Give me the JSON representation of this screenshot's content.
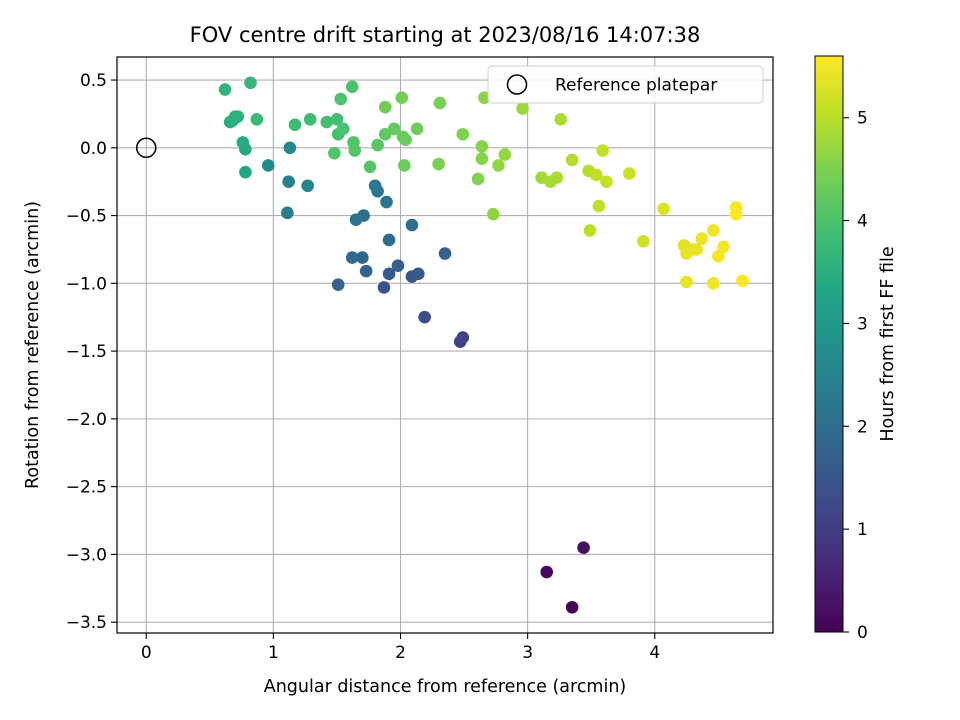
{
  "chart_data": {
    "type": "scatter",
    "title": "FOV centre drift starting at 2023/08/16 14:07:38",
    "xlabel": "Angular distance from reference (arcmin)",
    "ylabel": "Rotation from reference (arcmin)",
    "xlim": [
      -0.23,
      4.93
    ],
    "ylim": [
      -3.58,
      0.67
    ],
    "x_ticks": [
      0,
      1,
      2,
      3,
      4
    ],
    "y_ticks": [
      0.5,
      0.0,
      -0.5,
      -1.0,
      -1.5,
      -2.0,
      -2.5,
      -3.0,
      -3.5
    ],
    "x_tick_labels": [
      "0",
      "1",
      "2",
      "3",
      "4"
    ],
    "y_tick_labels": [
      "0.5",
      "0.0",
      "−0.5",
      "−1.0",
      "−1.5",
      "−2.0",
      "−2.5",
      "−3.0",
      "−3.5"
    ],
    "grid": true,
    "legend": {
      "placement": "top-right",
      "entries": [
        "Reference platepar"
      ]
    },
    "reference_point": {
      "x": 0,
      "y": 0,
      "marker": "open-circle",
      "label": "Reference platepar"
    },
    "colorbar": {
      "label": "Hours from first FF file",
      "range": [
        0,
        5.6
      ],
      "ticks": [
        0,
        1,
        2,
        3,
        4,
        5
      ],
      "tick_labels": [
        "0",
        "1",
        "2",
        "3",
        "4",
        "5"
      ],
      "colormap": "viridis"
    },
    "points": [
      {
        "x": 3.35,
        "y": -3.39,
        "hours": 0.05
      },
      {
        "x": 3.15,
        "y": -3.13,
        "hours": 0.15
      },
      {
        "x": 3.44,
        "y": -2.95,
        "hours": 0.25
      },
      {
        "x": 2.47,
        "y": -1.43,
        "hours": 1.05
      },
      {
        "x": 2.49,
        "y": -1.4,
        "hours": 1.12
      },
      {
        "x": 2.19,
        "y": -1.25,
        "hours": 1.3
      },
      {
        "x": 1.87,
        "y": -1.03,
        "hours": 1.45
      },
      {
        "x": 2.09,
        "y": -0.95,
        "hours": 1.5
      },
      {
        "x": 2.14,
        "y": -0.93,
        "hours": 1.55
      },
      {
        "x": 1.91,
        "y": -0.93,
        "hours": 1.6
      },
      {
        "x": 1.98,
        "y": -0.87,
        "hours": 1.65
      },
      {
        "x": 2.35,
        "y": -0.78,
        "hours": 1.7
      },
      {
        "x": 1.51,
        "y": -1.01,
        "hours": 1.75
      },
      {
        "x": 1.73,
        "y": -0.91,
        "hours": 1.8
      },
      {
        "x": 1.7,
        "y": -0.81,
        "hours": 1.85
      },
      {
        "x": 1.62,
        "y": -0.81,
        "hours": 1.9
      },
      {
        "x": 1.91,
        "y": -0.68,
        "hours": 1.95
      },
      {
        "x": 2.09,
        "y": -0.57,
        "hours": 2.0
      },
      {
        "x": 1.71,
        "y": -0.5,
        "hours": 2.05
      },
      {
        "x": 1.65,
        "y": -0.53,
        "hours": 2.1
      },
      {
        "x": 1.89,
        "y": -0.4,
        "hours": 2.15
      },
      {
        "x": 1.82,
        "y": -0.32,
        "hours": 2.2
      },
      {
        "x": 1.8,
        "y": -0.28,
        "hours": 2.25
      },
      {
        "x": 1.11,
        "y": -0.48,
        "hours": 2.35
      },
      {
        "x": 1.12,
        "y": -0.25,
        "hours": 2.45
      },
      {
        "x": 1.27,
        "y": -0.28,
        "hours": 2.5
      },
      {
        "x": 1.13,
        "y": 0.0,
        "hours": 2.6
      },
      {
        "x": 0.96,
        "y": -0.13,
        "hours": 2.7
      },
      {
        "x": 0.78,
        "y": -0.18,
        "hours": 3.3
      },
      {
        "x": 0.78,
        "y": -0.01,
        "hours": 3.4
      },
      {
        "x": 0.76,
        "y": 0.04,
        "hours": 3.45
      },
      {
        "x": 0.66,
        "y": 0.19,
        "hours": 3.5
      },
      {
        "x": 0.68,
        "y": 0.2,
        "hours": 3.52
      },
      {
        "x": 0.7,
        "y": 0.23,
        "hours": 3.55
      },
      {
        "x": 0.72,
        "y": 0.23,
        "hours": 3.57
      },
      {
        "x": 0.62,
        "y": 0.43,
        "hours": 3.65
      },
      {
        "x": 0.82,
        "y": 0.48,
        "hours": 3.7
      },
      {
        "x": 0.87,
        "y": 0.21,
        "hours": 3.75
      },
      {
        "x": 1.17,
        "y": 0.17,
        "hours": 3.8
      },
      {
        "x": 1.29,
        "y": 0.21,
        "hours": 3.85
      },
      {
        "x": 1.42,
        "y": 0.19,
        "hours": 3.9
      },
      {
        "x": 1.5,
        "y": 0.21,
        "hours": 3.92
      },
      {
        "x": 1.51,
        "y": 0.1,
        "hours": 3.95
      },
      {
        "x": 1.55,
        "y": 0.14,
        "hours": 3.97
      },
      {
        "x": 1.53,
        "y": 0.36,
        "hours": 4.0
      },
      {
        "x": 1.62,
        "y": 0.45,
        "hours": 4.02
      },
      {
        "x": 1.63,
        "y": 0.04,
        "hours": 4.05
      },
      {
        "x": 1.48,
        "y": -0.04,
        "hours": 4.07
      },
      {
        "x": 1.64,
        "y": -0.02,
        "hours": 4.1
      },
      {
        "x": 1.76,
        "y": -0.14,
        "hours": 4.12
      },
      {
        "x": 1.82,
        "y": 0.02,
        "hours": 4.15
      },
      {
        "x": 1.88,
        "y": 0.1,
        "hours": 4.2
      },
      {
        "x": 1.95,
        "y": 0.14,
        "hours": 4.25
      },
      {
        "x": 2.02,
        "y": 0.08,
        "hours": 4.28
      },
      {
        "x": 2.04,
        "y": 0.06,
        "hours": 4.3
      },
      {
        "x": 2.03,
        "y": -0.13,
        "hours": 4.32
      },
      {
        "x": 2.13,
        "y": 0.14,
        "hours": 4.35
      },
      {
        "x": 1.88,
        "y": 0.3,
        "hours": 4.38
      },
      {
        "x": 2.01,
        "y": 0.37,
        "hours": 4.4
      },
      {
        "x": 2.31,
        "y": 0.33,
        "hours": 4.45
      },
      {
        "x": 2.3,
        "y": -0.12,
        "hours": 4.48
      },
      {
        "x": 2.49,
        "y": 0.1,
        "hours": 4.5
      },
      {
        "x": 2.61,
        "y": -0.23,
        "hours": 4.55
      },
      {
        "x": 2.64,
        "y": -0.08,
        "hours": 4.58
      },
      {
        "x": 2.64,
        "y": 0.01,
        "hours": 4.6
      },
      {
        "x": 2.66,
        "y": 0.37,
        "hours": 4.62
      },
      {
        "x": 2.73,
        "y": -0.49,
        "hours": 4.65
      },
      {
        "x": 2.77,
        "y": -0.13,
        "hours": 4.68
      },
      {
        "x": 2.82,
        "y": -0.05,
        "hours": 4.7
      },
      {
        "x": 2.96,
        "y": 0.29,
        "hours": 4.75
      },
      {
        "x": 3.11,
        "y": -0.22,
        "hours": 4.8
      },
      {
        "x": 3.18,
        "y": -0.25,
        "hours": 4.85
      },
      {
        "x": 3.23,
        "y": -0.22,
        "hours": 4.88
      },
      {
        "x": 3.26,
        "y": 0.21,
        "hours": 4.9
      },
      {
        "x": 3.35,
        "y": -0.09,
        "hours": 4.95
      },
      {
        "x": 3.48,
        "y": -0.17,
        "hours": 5.0
      },
      {
        "x": 3.49,
        "y": -0.61,
        "hours": 5.02
      },
      {
        "x": 3.54,
        "y": -0.2,
        "hours": 5.05
      },
      {
        "x": 3.56,
        "y": -0.43,
        "hours": 5.07
      },
      {
        "x": 3.59,
        "y": -0.02,
        "hours": 5.1
      },
      {
        "x": 3.62,
        "y": -0.25,
        "hours": 5.12
      },
      {
        "x": 3.8,
        "y": -0.19,
        "hours": 5.15
      },
      {
        "x": 3.91,
        "y": -0.69,
        "hours": 5.2
      },
      {
        "x": 4.07,
        "y": -0.45,
        "hours": 5.3
      },
      {
        "x": 4.23,
        "y": -0.72,
        "hours": 5.35
      },
      {
        "x": 4.25,
        "y": -0.78,
        "hours": 5.38
      },
      {
        "x": 4.25,
        "y": -0.99,
        "hours": 5.4
      },
      {
        "x": 4.3,
        "y": -0.75,
        "hours": 5.42
      },
      {
        "x": 4.33,
        "y": -0.75,
        "hours": 5.44
      },
      {
        "x": 4.37,
        "y": -0.67,
        "hours": 5.46
      },
      {
        "x": 4.46,
        "y": -0.61,
        "hours": 5.48
      },
      {
        "x": 4.46,
        "y": -1.0,
        "hours": 5.5
      },
      {
        "x": 4.5,
        "y": -0.8,
        "hours": 5.52
      },
      {
        "x": 4.54,
        "y": -0.73,
        "hours": 5.54
      },
      {
        "x": 4.64,
        "y": -0.44,
        "hours": 5.56
      },
      {
        "x": 4.64,
        "y": -0.49,
        "hours": 5.57
      },
      {
        "x": 4.69,
        "y": -0.98,
        "hours": 5.6
      }
    ]
  }
}
